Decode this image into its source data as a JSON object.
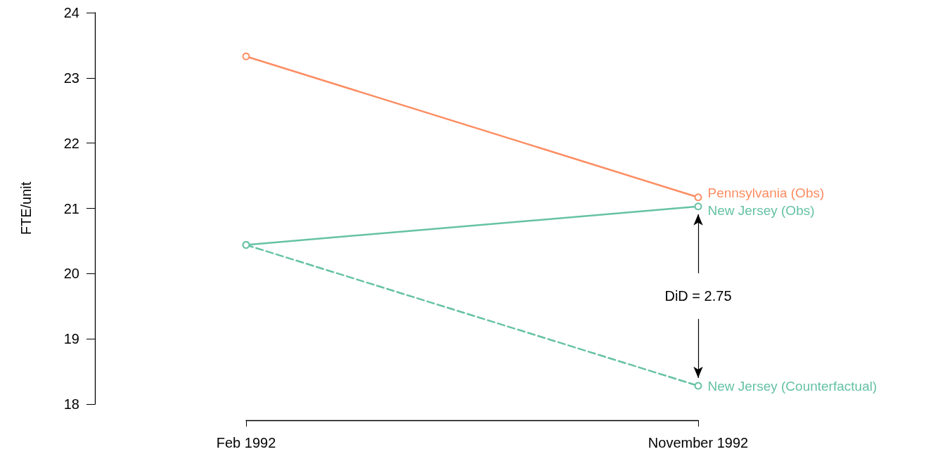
{
  "chart_data": {
    "type": "line",
    "ylabel": "FTE/unit",
    "categories": [
      "Feb 1992",
      "November 1992"
    ],
    "series": [
      {
        "name": "Pennsylvania (Obs)",
        "color": "#fc8d62",
        "values": [
          23.33,
          21.17
        ],
        "line_style": "solid"
      },
      {
        "name": "New Jersey (Obs)",
        "color": "#66c2a5",
        "values": [
          20.44,
          21.03
        ],
        "line_style": "solid"
      },
      {
        "name": "New Jersey (Counterfactual)",
        "color": "#66c2a5",
        "values": [
          20.44,
          18.28
        ],
        "line_style": "dashed"
      }
    ],
    "ylim": [
      18,
      24
    ],
    "yticks": [
      18,
      19,
      20,
      21,
      22,
      23,
      24
    ],
    "annotations": [
      "DiD = 2.75"
    ],
    "marker": "circle",
    "grid": false,
    "legend": false
  }
}
